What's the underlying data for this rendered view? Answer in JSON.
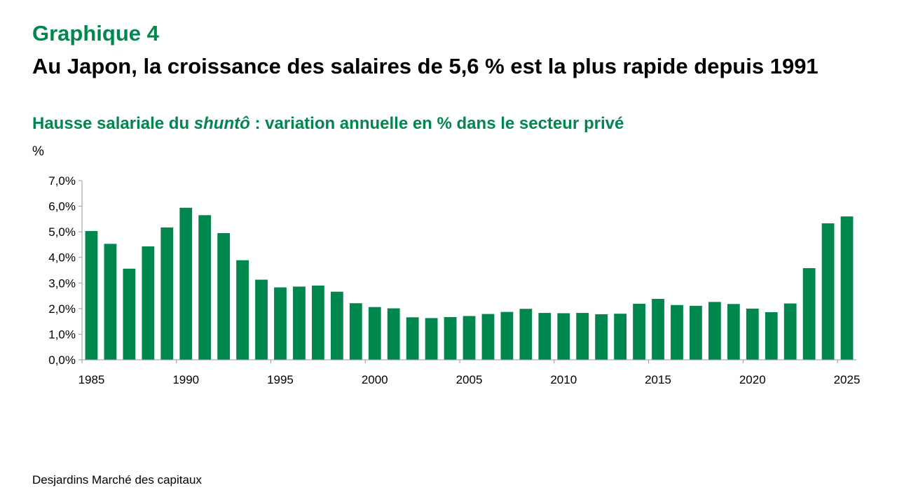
{
  "header": {
    "graph_label": "Graphique 4",
    "title": "Au Japon, la croissance des salaires de 5,6 % est la plus rapide depuis 1991",
    "subtitle_prefix": "Hausse salariale du ",
    "subtitle_italic": "shuntô",
    "subtitle_suffix": " : variation annuelle en % dans le secteur privé"
  },
  "footer": {
    "source": "Desjardins Marché des capitaux"
  },
  "colors": {
    "bar": "#00874E",
    "accent": "#00874E"
  },
  "chart_data": {
    "type": "bar",
    "title": "",
    "ylabel": "%",
    "xlabel": "",
    "ylim": [
      0,
      7
    ],
    "yticks": [
      "0,0%",
      "1,0%",
      "2,0%",
      "3,0%",
      "4,0%",
      "5,0%",
      "6,0%",
      "7,0%"
    ],
    "xtick_labels": [
      "1985",
      "1990",
      "1995",
      "2000",
      "2005",
      "2010",
      "2015",
      "2020",
      "2025"
    ],
    "categories": [
      1985,
      1986,
      1987,
      1988,
      1989,
      1990,
      1991,
      1992,
      1993,
      1994,
      1995,
      1996,
      1997,
      1998,
      1999,
      2000,
      2001,
      2002,
      2003,
      2004,
      2005,
      2006,
      2007,
      2008,
      2009,
      2010,
      2011,
      2012,
      2013,
      2014,
      2015,
      2016,
      2017,
      2018,
      2019,
      2020,
      2021,
      2022,
      2023,
      2024,
      2025
    ],
    "values": [
      5.03,
      4.53,
      3.56,
      4.43,
      5.17,
      5.94,
      5.65,
      4.95,
      3.89,
      3.13,
      2.83,
      2.86,
      2.9,
      2.66,
      2.21,
      2.06,
      2.01,
      1.66,
      1.63,
      1.67,
      1.71,
      1.79,
      1.87,
      1.99,
      1.83,
      1.82,
      1.83,
      1.78,
      1.8,
      2.19,
      2.38,
      2.14,
      2.11,
      2.26,
      2.18,
      2.0,
      1.86,
      2.2,
      3.58,
      5.33,
      5.6
    ],
    "grid": false,
    "legend": "none"
  }
}
